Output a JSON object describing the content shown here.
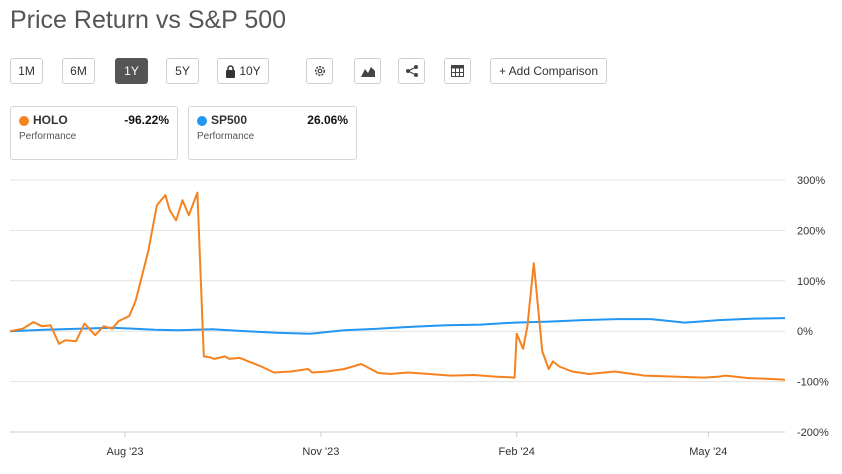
{
  "header": {
    "title": "Price Return vs S&P 500"
  },
  "toolbar": {
    "ranges": [
      "1M",
      "6M",
      "1Y",
      "5Y",
      "10Y"
    ],
    "active_range": "1Y",
    "add_comparison_label": "+ Add Comparison"
  },
  "legend": [
    {
      "name": "HOLO",
      "value": "-96.22%",
      "sub": "Performance",
      "color": "#f5821f"
    },
    {
      "name": "SP500",
      "value": "26.06%",
      "sub": "Performance",
      "color": "#2196f3"
    }
  ],
  "chart_data": {
    "type": "line",
    "yunit": "%",
    "ylim": [
      -200,
      300
    ],
    "yticks": [
      "300%",
      "200%",
      "100%",
      "0%",
      "-100%",
      "-200%"
    ],
    "ytick_values": [
      300,
      200,
      100,
      0,
      -100,
      -200
    ],
    "xticks": [
      "Aug '23",
      "Nov '23",
      "Feb '24",
      "May '24"
    ],
    "xtick_dates": [
      "2023-08-01",
      "2023-11-01",
      "2024-02-01",
      "2024-05-01"
    ],
    "xlim": [
      "2023-06-08",
      "2024-06-06"
    ],
    "grid": true,
    "series": [
      {
        "name": "HOLO",
        "color": "#f5821f",
        "x": [
          "2023-06-08",
          "2023-06-14",
          "2023-06-19",
          "2023-06-23",
          "2023-06-27",
          "2023-07-01",
          "2023-07-04",
          "2023-07-09",
          "2023-07-13",
          "2023-07-18",
          "2023-07-22",
          "2023-07-26",
          "2023-07-29",
          "2023-08-03",
          "2023-08-06",
          "2023-08-12",
          "2023-08-16",
          "2023-08-20",
          "2023-08-22",
          "2023-08-25",
          "2023-08-28",
          "2023-08-31",
          "2023-09-04",
          "2023-09-07",
          "2023-09-10",
          "2023-09-12",
          "2023-09-15",
          "2023-09-17",
          "2023-09-19",
          "2023-09-24",
          "2023-09-28",
          "2023-10-04",
          "2023-10-10",
          "2023-10-18",
          "2023-10-26",
          "2023-10-28",
          "2023-11-04",
          "2023-11-12",
          "2023-11-20",
          "2023-11-28",
          "2023-12-04",
          "2023-12-06",
          "2023-12-12",
          "2023-12-22",
          "2024-01-01",
          "2024-01-12",
          "2024-01-22",
          "2024-01-31",
          "2024-02-01",
          "2024-02-04",
          "2024-02-06",
          "2024-02-09",
          "2024-02-13",
          "2024-02-16",
          "2024-02-18",
          "2024-02-21",
          "2024-02-27",
          "2024-03-06",
          "2024-03-18",
          "2024-04-01",
          "2024-04-15",
          "2024-04-29",
          "2024-05-06",
          "2024-05-09",
          "2024-05-20",
          "2024-06-01",
          "2024-06-06"
        ],
        "y": [
          0,
          5,
          18,
          10,
          12,
          -25,
          -18,
          -20,
          15,
          -8,
          10,
          5,
          20,
          30,
          60,
          160,
          250,
          270,
          240,
          220,
          260,
          230,
          275,
          -50,
          -52,
          -55,
          -52,
          -50,
          -55,
          -53,
          -60,
          -70,
          -82,
          -80,
          -75,
          -82,
          -80,
          -75,
          -65,
          -83,
          -85,
          -84,
          -82,
          -85,
          -88,
          -87,
          -90,
          -92,
          -5,
          -35,
          10,
          135,
          -40,
          -75,
          -60,
          -70,
          -80,
          -85,
          -80,
          -88,
          -90,
          -92,
          -90,
          -88,
          -93,
          -95,
          -96.22
        ]
      },
      {
        "name": "SP500",
        "color": "#2196f3",
        "x": [
          "2023-06-08",
          "2023-06-24",
          "2023-07-10",
          "2023-07-26",
          "2023-08-15",
          "2023-08-26",
          "2023-09-11",
          "2023-09-27",
          "2023-10-11",
          "2023-10-27",
          "2023-11-12",
          "2023-11-28",
          "2023-12-14",
          "2023-12-30",
          "2024-01-15",
          "2024-01-31",
          "2024-02-16",
          "2024-03-03",
          "2024-03-19",
          "2024-04-04",
          "2024-04-20",
          "2024-05-06",
          "2024-05-22",
          "2024-06-06"
        ],
        "y": [
          0,
          3,
          5,
          7,
          3,
          2,
          4,
          0,
          -3,
          -5,
          2,
          5,
          9,
          12,
          13,
          17,
          19,
          22,
          24,
          24,
          17,
          22,
          25,
          26.06
        ]
      }
    ]
  }
}
